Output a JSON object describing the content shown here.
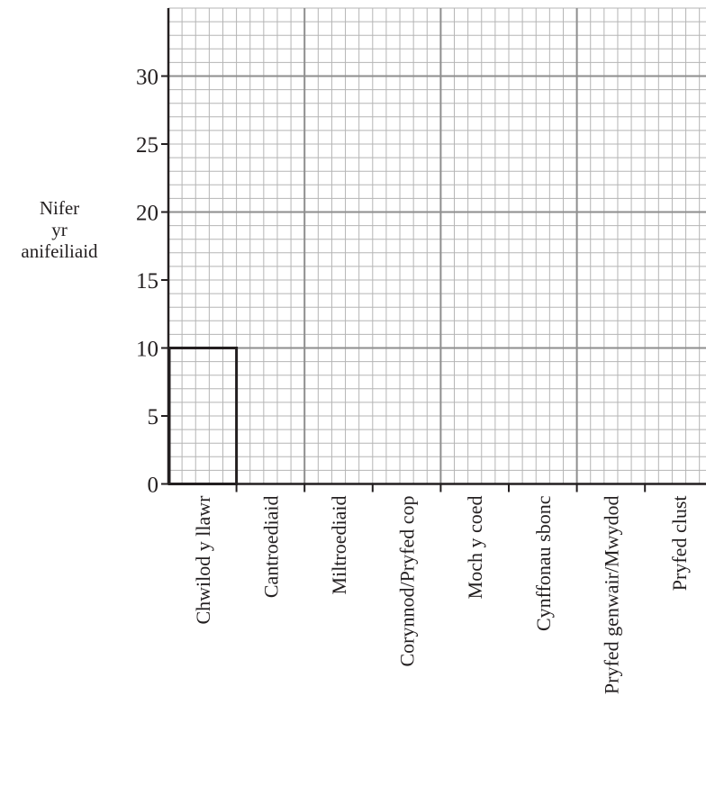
{
  "chart_data": {
    "type": "bar",
    "title": "",
    "xlabel": "",
    "ylabel": [
      "Nifer",
      "yr",
      "anifeiliaid"
    ],
    "categories": [
      "Chwilod y llawr",
      "Cantroediaid",
      "Miltroediaid",
      "Corynnod/Pryfed cop",
      "Moch y coed",
      "Cynffonau sbonc",
      "Pryfed genwair/Mwydod",
      "Pryfed clust"
    ],
    "values": [
      10,
      null,
      null,
      null,
      null,
      null,
      null,
      null
    ],
    "ylim": [
      0,
      35
    ],
    "yticks": [
      0,
      5,
      10,
      15,
      20,
      25,
      30
    ],
    "grid": true,
    "grid_minor_step": 1,
    "grid_major_step": 10,
    "colors": {
      "grid_minor": "#b5b5b5",
      "grid_major": "#8e8e8e",
      "axis": "#231f20",
      "bar_outline": "#231f20"
    }
  }
}
